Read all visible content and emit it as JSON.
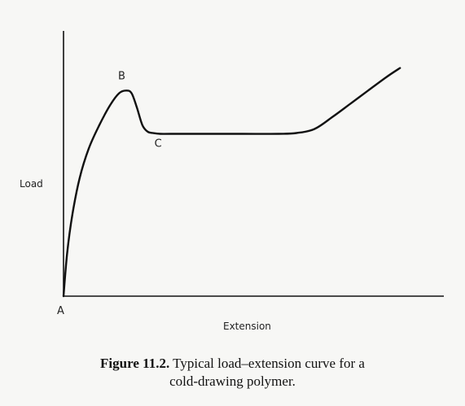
{
  "chart_data": {
    "type": "line",
    "title": "",
    "xlabel": "Extension",
    "ylabel": "Load",
    "xlim": [
      0,
      10
    ],
    "ylim": [
      0,
      10
    ],
    "grid": false,
    "series": [
      {
        "x": [
          0,
          0.1,
          0.25,
          0.45,
          0.7,
          1.0,
          1.3,
          1.55,
          1.75,
          1.9,
          2.05,
          2.2,
          2.35,
          2.5,
          2.7,
          3.0,
          4.0,
          5.0,
          6.0,
          6.5,
          7.0,
          7.5,
          8.0,
          8.5,
          9.0,
          9.39
        ],
        "y": [
          0,
          1.6,
          3.1,
          4.45,
          5.55,
          6.45,
          7.2,
          7.65,
          7.75,
          7.65,
          7.1,
          6.45,
          6.2,
          6.15,
          6.12,
          6.12,
          6.12,
          6.12,
          6.12,
          6.15,
          6.3,
          6.75,
          7.25,
          7.75,
          8.25,
          8.6
        ]
      }
    ],
    "points": [
      {
        "label": "A",
        "x": 0,
        "y": 0
      },
      {
        "label": "B",
        "x": 1.75,
        "y": 7.75
      },
      {
        "label": "C",
        "x": 2.4,
        "y": 6.18
      }
    ]
  },
  "caption": {
    "figure_number": "Figure 11.2.",
    "line1": " Typical load–extension curve for a",
    "line2": "cold-drawing polymer."
  }
}
